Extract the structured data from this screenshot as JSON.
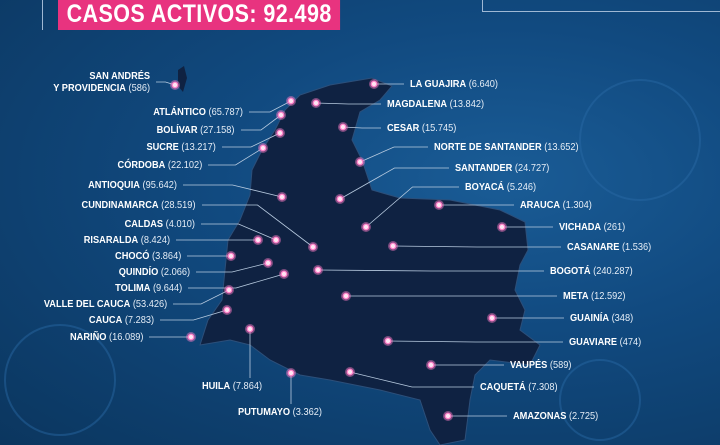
{
  "header": {
    "active_cases_label": "CASOS ACTIVOS: 92.498"
  },
  "colors": {
    "accent": "#e8337f",
    "map_fill": "#0f2242",
    "marker": "#ff7fc8",
    "background": "#114a80"
  },
  "departments": [
    {
      "name": "SAN ANDRÉS Y PROVIDENCIA",
      "line1": "SAN ANDRÉS",
      "line2": "Y PROVIDENCIA",
      "cases": "(586)"
    },
    {
      "name": "ATLÁNTICO",
      "cases": "(65.787)"
    },
    {
      "name": "BOLÍVAR",
      "cases": "(27.158)"
    },
    {
      "name": "SUCRE",
      "cases": "(13.217)"
    },
    {
      "name": "CÓRDOBA",
      "cases": "(22.102)"
    },
    {
      "name": "ANTIOQUIA",
      "cases": "(95.642)"
    },
    {
      "name": "CUNDINAMARCA",
      "cases": "(28.519)"
    },
    {
      "name": "CALDAS",
      "cases": "(4.010)"
    },
    {
      "name": "RISARALDA",
      "cases": "(8.424)"
    },
    {
      "name": "CHOCÓ",
      "cases": "(3.864)"
    },
    {
      "name": "QUINDÍO",
      "cases": "(2.066)"
    },
    {
      "name": "TOLIMA",
      "cases": "(9.644)"
    },
    {
      "name": "VALLE DEL CAUCA",
      "cases": "(53.426)"
    },
    {
      "name": "CAUCA",
      "cases": "(7.283)"
    },
    {
      "name": "NARIÑO",
      "cases": "(16.089)"
    },
    {
      "name": "HUILA",
      "cases": "(7.864)"
    },
    {
      "name": "PUTUMAYO",
      "cases": "(3.362)"
    },
    {
      "name": "LA GUAJIRA",
      "cases": "(6.640)"
    },
    {
      "name": "MAGDALENA",
      "cases": "(13.842)"
    },
    {
      "name": "CESAR",
      "cases": "(15.745)"
    },
    {
      "name": "NORTE DE SANTANDER",
      "cases": "(13.652)"
    },
    {
      "name": "SANTANDER",
      "cases": "(24.727)"
    },
    {
      "name": "BOYACÁ",
      "cases": "(5.246)"
    },
    {
      "name": "ARAUCA",
      "cases": "(1.304)"
    },
    {
      "name": "VICHADA",
      "cases": "(261)"
    },
    {
      "name": "CASANARE",
      "cases": "(1.536)"
    },
    {
      "name": "BOGOTÁ",
      "cases": "(240.287)"
    },
    {
      "name": "META",
      "cases": "(12.592)"
    },
    {
      "name": "GUAINÍA",
      "cases": "(348)"
    },
    {
      "name": "GUAVIARE",
      "cases": "(474)"
    },
    {
      "name": "VAUPÉS",
      "cases": "(589)"
    },
    {
      "name": "CAQUETÁ",
      "cases": "(7.308)"
    },
    {
      "name": "AMAZONAS",
      "cases": "(2.725)"
    }
  ]
}
